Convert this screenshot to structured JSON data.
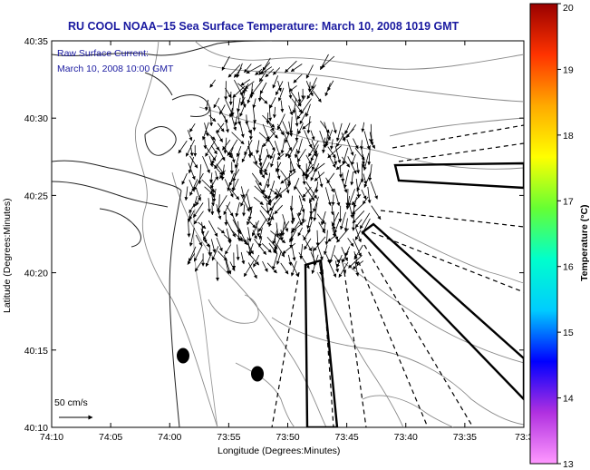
{
  "title": "RU COOL  NOAA−15  Sea Surface Temperature:  March 10, 2008 1019 GMT",
  "inset": {
    "line1": "Raw Surface Current:",
    "line2": "March 10, 2008 10:00 GMT"
  },
  "scale_label": "50 cm/s",
  "xlabel": "Longitude (Degrees:Minutes)",
  "ylabel": "Latitude (Degrees:Minutes)",
  "x_ticks": [
    "74:10",
    "74:05",
    "74:00",
    "73:55",
    "73:50",
    "73:45",
    "73:40",
    "73:35",
    "73:3"
  ],
  "y_ticks": [
    "40:35",
    "40:30",
    "40:25",
    "40:20",
    "40:15",
    "40:10"
  ],
  "colorbar": {
    "label": "Temperature (°C)",
    "ticks": [
      "20",
      "19",
      "18",
      "17",
      "16",
      "15",
      "14",
      "13"
    ],
    "range": [
      13,
      20
    ],
    "colors": [
      "#ff99ff",
      "#b030e0",
      "#0000ff",
      "#00ccff",
      "#00ffcc",
      "#66ff33",
      "#ffff00",
      "#ffaa00",
      "#ff3300",
      "#990000"
    ]
  },
  "map": {
    "lon_range_min": [
      -74.1667,
      -73.5
    ],
    "lat_range_min": [
      40.1667,
      40.5833
    ],
    "markers": [
      {
        "lon": -73.9792,
        "lat": 40.2458
      },
      {
        "lon": -73.8708,
        "lat": 40.225
      }
    ]
  }
}
